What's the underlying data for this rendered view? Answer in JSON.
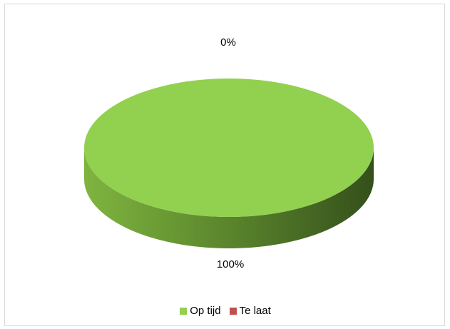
{
  "chart_data": {
    "type": "pie",
    "style": "3d",
    "categories": [
      "Op tijd",
      "Te laat"
    ],
    "values": [
      100,
      0
    ],
    "data_labels": [
      "100%",
      "0%"
    ],
    "colors": [
      "#92d050",
      "#c0504d"
    ],
    "side_colors": {
      "light": "#7fb43f",
      "dark": "#34501b"
    },
    "legend_position": "bottom",
    "title": ""
  }
}
